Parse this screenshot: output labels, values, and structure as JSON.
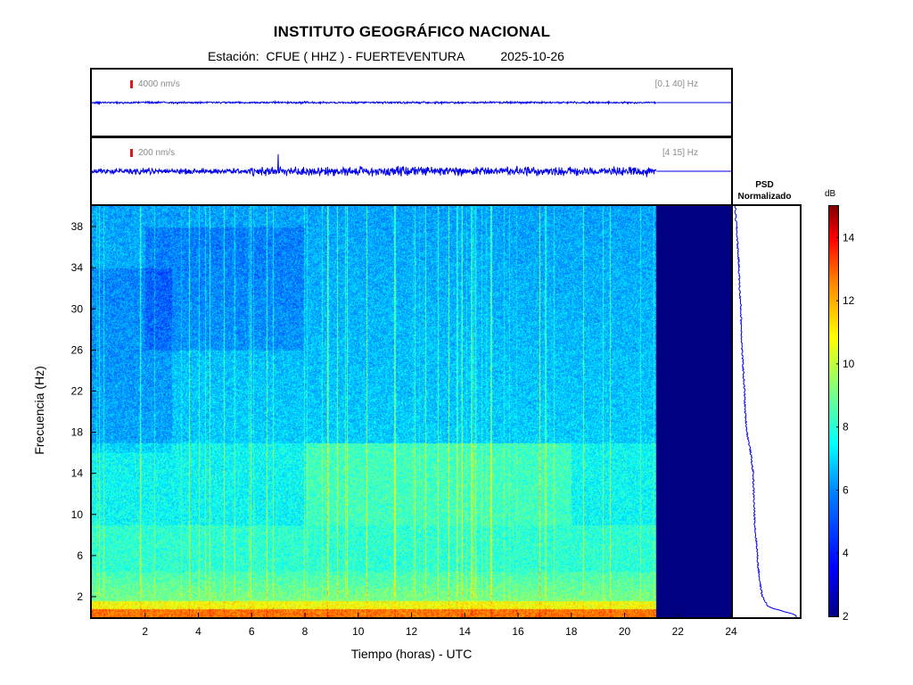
{
  "header": {
    "title": "INSTITUTO GEOGRÁFICO NACIONAL",
    "station_prefix": "Estación:",
    "station": "CFUE ( HHZ ) - FUERTEVENTURA",
    "date": "2025-10-26"
  },
  "traces": [
    {
      "scale": "4000 nm/s",
      "band": "[0.1 40] Hz"
    },
    {
      "scale": "200 nm/s",
      "band": "[4 15] Hz"
    }
  ],
  "psd": {
    "title_line1": "PSD",
    "title_line2": "Normalizado"
  },
  "colorbar": {
    "unit": "dB",
    "ticks": [
      2,
      4,
      6,
      8,
      10,
      12,
      14
    ],
    "range": [
      2,
      15
    ]
  },
  "chart_data": {
    "type": "heatmap",
    "xlabel": "Tiempo (horas) - UTC",
    "ylabel": "Frecuencia  (Hz)",
    "xlim": [
      0,
      24
    ],
    "ylim": [
      0,
      40
    ],
    "xticks": [
      2,
      4,
      6,
      8,
      10,
      12,
      14,
      16,
      18,
      20,
      22,
      24
    ],
    "yticks": [
      2,
      6,
      10,
      14,
      18,
      22,
      26,
      30,
      34,
      38
    ],
    "data_end_hour": 21.2,
    "colors": {
      "no_data": "#000083",
      "trace": "#0000ee"
    },
    "psd_profile": {
      "freq_hz": [
        0.2,
        1,
        2,
        3,
        4,
        5,
        6,
        7,
        8,
        10,
        12,
        14,
        16,
        18,
        20,
        22,
        24,
        26,
        28,
        30,
        32,
        34,
        36,
        38,
        39.5
      ],
      "normalized": [
        1.0,
        0.55,
        0.45,
        0.42,
        0.4,
        0.38,
        0.37,
        0.36,
        0.34,
        0.32,
        0.31,
        0.3,
        0.26,
        0.2,
        0.17,
        0.16,
        0.14,
        0.12,
        0.11,
        0.1,
        0.08,
        0.07,
        0.05,
        0.03,
        0.01
      ]
    }
  }
}
